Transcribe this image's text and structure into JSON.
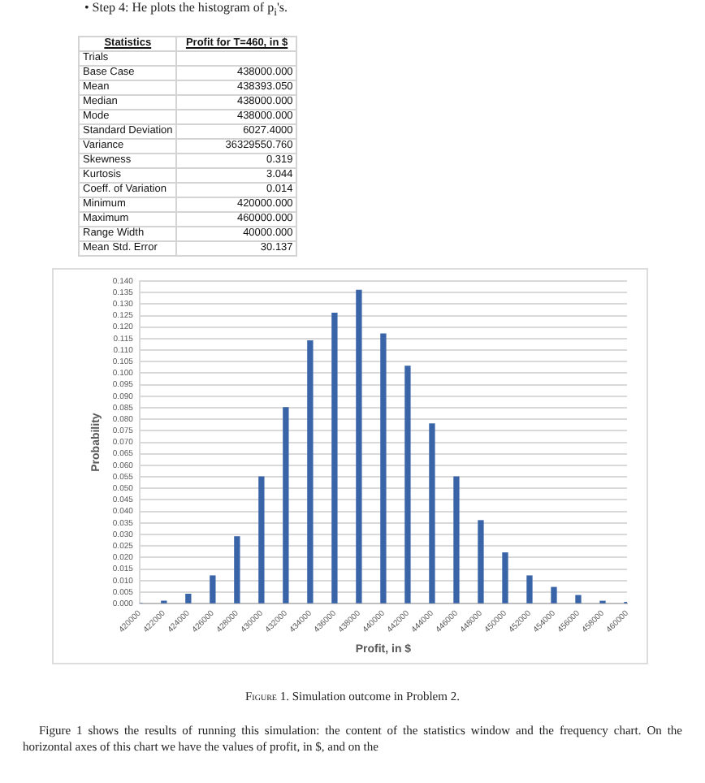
{
  "chart_data": [
    {
      "type": "other",
      "title": "• Step 4: He plots the histogram of p$_{i}$'s.",
      "annotations": [
        "Statistics",
        "Profit for T=460, in $"
      ],
      "categories": [
        "Trials",
        "Base Case",
        "Mean",
        "Median",
        "Mode",
        "Standard Deviation",
        "Variance",
        "Skewness",
        "Kurtosis",
        "Coeff. of Variation",
        "Minimum",
        "Maximum",
        "Range Width",
        "Mean Std. Error"
      ],
      "value_labels": [
        null,
        "438000.000",
        "438393.050",
        "438000.000",
        "438000.000",
        "6027.4000",
        "36329550.760",
        "0.319",
        "3.044",
        "0.014",
        "420000.000",
        "460000.000",
        "40000.000",
        "30.137"
      ]
    },
    {
      "type": "bar",
      "xlabel": "Profit, in $",
      "ylabel": "Probability",
      "categories": [
        "420000",
        "422000",
        "424000",
        "426000",
        "428000",
        "430000",
        "432000",
        "434000",
        "436000",
        "438000",
        "440000",
        "442000",
        "444000",
        "446000",
        "448000",
        "450000",
        "452000",
        "454000",
        "456000",
        "458000",
        "460000"
      ],
      "values": [
        0,
        0.001,
        0.004,
        0.012,
        0.029,
        0.055,
        0.085,
        0.114,
        0.126,
        0.136,
        0.117,
        0.103,
        0.078,
        0.055,
        0.036,
        0.022,
        0.012,
        0.007,
        0.0035,
        0.001,
        0.0005
      ],
      "color": "#3a64a8",
      "ylim": [
        0,
        0.14
      ],
      "yticks": [
        {
          "value": 0,
          "label": "0.000"
        },
        0.005,
        {
          "value": 0.01,
          "label": "0.010"
        },
        0.015,
        {
          "value": 0.02,
          "label": "0.020"
        },
        0.025,
        {
          "value": 0.03,
          "label": "0.030"
        },
        0.035,
        {
          "value": 0.04,
          "label": "0.040"
        },
        0.045,
        {
          "value": 0.05,
          "label": "0.050"
        },
        0.055,
        {
          "value": 0.06,
          "label": "0.060"
        },
        0.065,
        {
          "value": 0.07,
          "label": "0.070"
        },
        0.075,
        {
          "value": 0.08,
          "label": "0.080"
        },
        0.085,
        {
          "value": 0.09,
          "label": "0.090"
        },
        0.095,
        {
          "value": 0.1,
          "label": "0.100"
        },
        0.105,
        {
          "value": 0.11,
          "label": "0.110"
        },
        0.115,
        {
          "value": 0.12,
          "label": "0.120"
        },
        0.125,
        {
          "value": 0.13,
          "label": "0.130"
        },
        0.135,
        {
          "value": 0.14,
          "label": "0.140"
        }
      ],
      "grid": "y",
      "annotations": [
        "Figure 1. Simulation outcome in Problem 2.",
        "Figure 1 shows the results of running this simulation: the content of the statistics window and the frequency chart. On the horizontal axes of this chart we have the values of profit, in $, and on the"
      ]
    }
  ]
}
